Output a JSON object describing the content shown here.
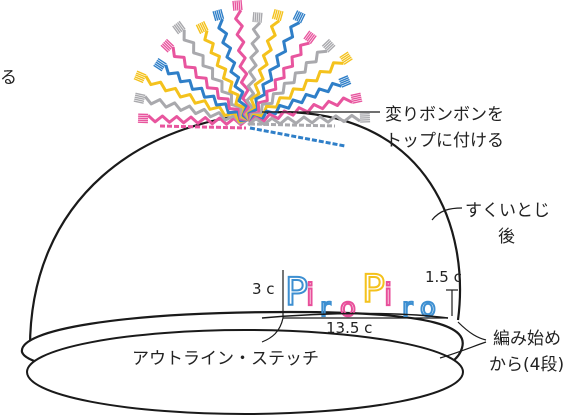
{
  "labels": {
    "edge_fragment": "る",
    "pompom_line1": "変りボンボンを",
    "pompom_line2": "トップに付ける",
    "sukui_line1": "すくいとじ",
    "sukui_line2": "後",
    "dim_height": "3 c",
    "dim_right": "1.5 c",
    "dim_width": "13.5 c",
    "outline_stitch": "アウトライン・ステッチ",
    "start_line1": "編み始め",
    "start_line2": "から(4段)"
  },
  "lettering": {
    "letters": [
      {
        "char": "P",
        "color": "#3d8fd1"
      },
      {
        "char": "i",
        "color": "#e84f9a"
      },
      {
        "char": "r",
        "color": "#3d8fd1"
      },
      {
        "char": "o",
        "color": "#e84f9a"
      },
      {
        "char": "P",
        "color": "#f4c21d"
      },
      {
        "char": "i",
        "color": "#e84f9a"
      },
      {
        "char": "r",
        "color": "#3d8fd1"
      },
      {
        "char": "o",
        "color": "#3d8fd1"
      }
    ]
  },
  "colors": {
    "outline": "#1a1a1a",
    "cord_blue": "#2f7fc8",
    "cord_yellow": "#f4c21d",
    "cord_pink": "#e8559e",
    "cord_gray": "#a9a9ad"
  }
}
